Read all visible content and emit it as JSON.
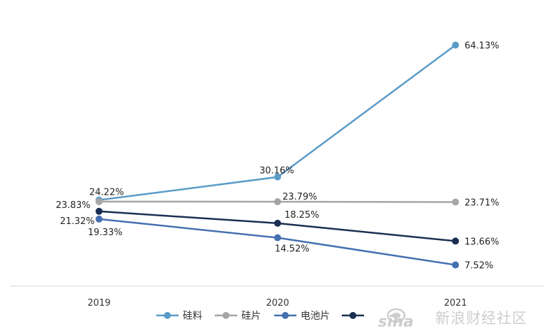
{
  "chart_data": {
    "type": "line",
    "categories": [
      "2019",
      "2020",
      "2021"
    ],
    "series": [
      {
        "name": "硅料",
        "color": "#5b9bc8",
        "values": [
          24.22,
          30.16,
          64.13
        ],
        "labels": [
          "24.22%",
          "30.16%",
          "64.13%"
        ]
      },
      {
        "name": "硅片",
        "color": "#a5a5a5",
        "values": [
          23.83,
          23.79,
          23.71
        ],
        "labels": [
          "23.83%",
          "23.79%",
          "23.71%"
        ]
      },
      {
        "name": "电池片",
        "color": "#4470b0",
        "values": [
          19.33,
          14.52,
          7.52
        ],
        "labels": [
          "19.33%",
          "14.52%",
          "7.52%"
        ]
      },
      {
        "name": "",
        "color": "#1a2f52",
        "values": [
          21.32,
          18.25,
          13.66
        ],
        "labels": [
          "21.32%",
          "18.25%",
          "13.66%"
        ]
      }
    ],
    "ylim": [
      0,
      70
    ],
    "grid": false,
    "legend": "bottom"
  },
  "watermark": {
    "text": "新浪财经社区"
  }
}
